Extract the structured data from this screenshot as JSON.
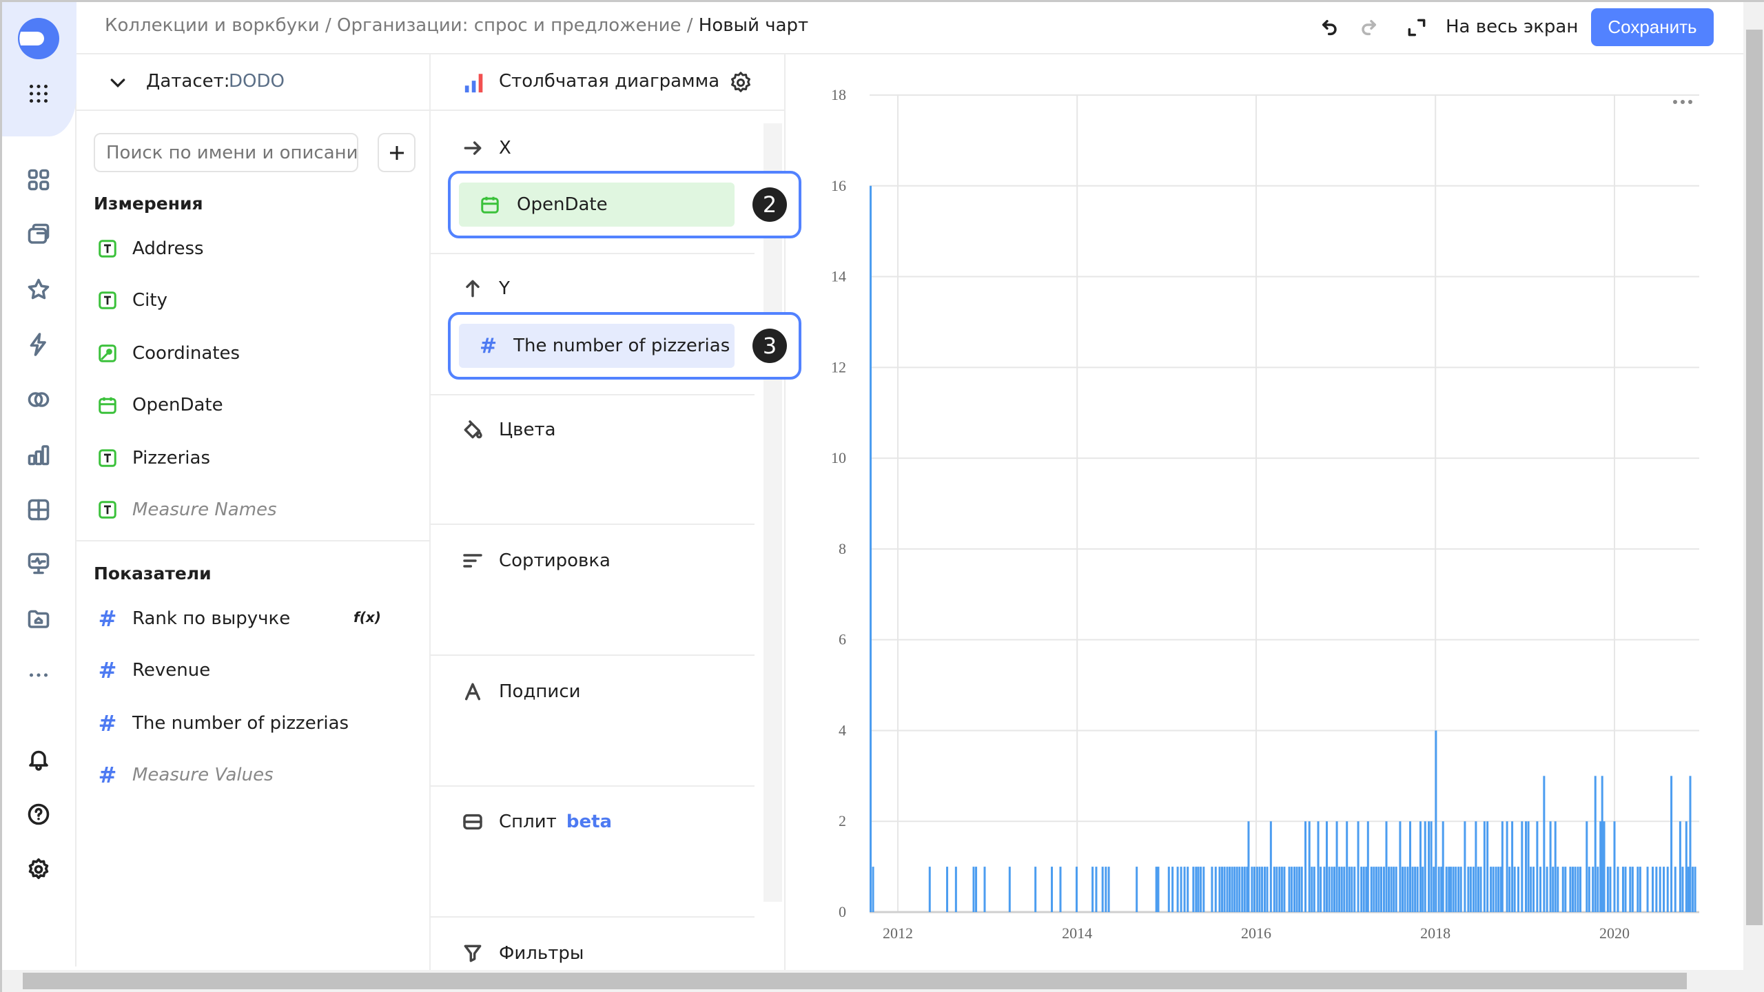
{
  "header": {
    "breadcrumb": [
      "Коллекции и воркбуки",
      "Организации: спрос и предложение",
      "Новый чарт"
    ],
    "separator": "/",
    "fullscreen_label": "На весь экран",
    "save_label": "Сохранить"
  },
  "colors": {
    "accent": "#5282ff",
    "bar": "#4c9df0",
    "dimension": "#3bc13b",
    "measure": "#4d7af2"
  },
  "dataset": {
    "label": "Датасет:",
    "name": "DODO"
  },
  "search": {
    "placeholder": "Поиск по имени и описанию"
  },
  "dimensions": {
    "title": "Измерения",
    "items": [
      {
        "label": "Address",
        "icon": "text-type-icon"
      },
      {
        "label": "City",
        "icon": "text-type-icon"
      },
      {
        "label": "Coordinates",
        "icon": "geo-type-icon"
      },
      {
        "label": "OpenDate",
        "icon": "date-type-icon"
      },
      {
        "label": "Pizzerias",
        "icon": "text-type-icon"
      },
      {
        "label": "Measure Names",
        "icon": "text-type-icon"
      }
    ]
  },
  "measures": {
    "title": "Показатели",
    "items": [
      {
        "label": "Rank по выручке",
        "badge": "f(x)"
      },
      {
        "label": "Revenue"
      },
      {
        "label": "The number of pizzerias"
      },
      {
        "label": "Measure Values"
      }
    ]
  },
  "visualization": {
    "type_label": "Столбчатая диаграмма",
    "x": {
      "label": "X",
      "field": "OpenDate",
      "step": "2"
    },
    "y": {
      "label": "Y",
      "field": "The number of pizzerias",
      "step": "3"
    },
    "colors_label": "Цвета",
    "sort_label": "Сортировка",
    "labels_label": "Подписи",
    "split_label": "Сплит",
    "split_badge": "beta",
    "filters_label": "Фильтры"
  },
  "chart_data": {
    "type": "bar",
    "xlabel": "",
    "ylabel": "",
    "ylim": [
      0,
      18
    ],
    "yticks": [
      "0",
      "2",
      "4",
      "6",
      "8",
      "10",
      "12",
      "14",
      "16",
      "18"
    ],
    "xticks": [
      "2012",
      "2014",
      "2016",
      "2018",
      "2020"
    ],
    "grid": true,
    "points": [
      [
        "2011-09-12",
        16
      ],
      [
        "2011-09-22",
        1
      ],
      [
        "2012-05-10",
        1
      ],
      [
        "2012-07-20",
        1
      ],
      [
        "2012-08-25",
        1
      ],
      [
        "2012-11-05",
        1
      ],
      [
        "2012-11-15",
        1
      ],
      [
        "2012-12-20",
        1
      ],
      [
        "2013-04-01",
        1
      ],
      [
        "2013-07-15",
        1
      ],
      [
        "2013-09-20",
        1
      ],
      [
        "2013-10-25",
        1
      ],
      [
        "2013-12-30",
        1
      ],
      [
        "2014-03-05",
        1
      ],
      [
        "2014-03-20",
        1
      ],
      [
        "2014-04-15",
        1
      ],
      [
        "2014-04-28",
        1
      ],
      [
        "2014-05-10",
        1
      ],
      [
        "2014-09-01",
        1
      ],
      [
        "2014-11-20",
        1
      ],
      [
        "2014-11-28",
        1
      ],
      [
        "2015-01-10",
        1
      ],
      [
        "2015-01-25",
        1
      ],
      [
        "2015-02-15",
        1
      ],
      [
        "2015-03-01",
        1
      ],
      [
        "2015-03-15",
        1
      ],
      [
        "2015-03-28",
        1
      ],
      [
        "2015-04-20",
        1
      ],
      [
        "2015-05-01",
        1
      ],
      [
        "2015-05-10",
        1
      ],
      [
        "2015-05-20",
        1
      ],
      [
        "2015-06-01",
        1
      ],
      [
        "2015-07-05",
        1
      ],
      [
        "2015-07-20",
        1
      ],
      [
        "2015-08-05",
        1
      ],
      [
        "2015-08-15",
        1
      ],
      [
        "2015-08-25",
        1
      ],
      [
        "2015-09-05",
        1
      ],
      [
        "2015-09-15",
        1
      ],
      [
        "2015-09-25",
        1
      ],
      [
        "2015-10-05",
        1
      ],
      [
        "2015-10-15",
        1
      ],
      [
        "2015-10-25",
        1
      ],
      [
        "2015-11-05",
        1
      ],
      [
        "2015-11-15",
        1
      ],
      [
        "2015-11-25",
        1
      ],
      [
        "2015-12-01",
        2
      ],
      [
        "2015-12-15",
        1
      ],
      [
        "2015-12-25",
        1
      ],
      [
        "2016-01-05",
        1
      ],
      [
        "2016-01-15",
        1
      ],
      [
        "2016-01-25",
        1
      ],
      [
        "2016-02-05",
        1
      ],
      [
        "2016-02-15",
        1
      ],
      [
        "2016-03-01",
        2
      ],
      [
        "2016-03-15",
        1
      ],
      [
        "2016-03-25",
        1
      ],
      [
        "2016-04-05",
        1
      ],
      [
        "2016-04-15",
        1
      ],
      [
        "2016-04-25",
        1
      ],
      [
        "2016-05-15",
        1
      ],
      [
        "2016-05-25",
        1
      ],
      [
        "2016-06-05",
        1
      ],
      [
        "2016-06-15",
        1
      ],
      [
        "2016-06-25",
        1
      ],
      [
        "2016-07-05",
        1
      ],
      [
        "2016-07-20",
        2
      ],
      [
        "2016-08-05",
        2
      ],
      [
        "2016-08-15",
        1
      ],
      [
        "2016-08-25",
        1
      ],
      [
        "2016-09-10",
        2
      ],
      [
        "2016-09-20",
        1
      ],
      [
        "2016-10-05",
        1
      ],
      [
        "2016-10-15",
        2
      ],
      [
        "2016-10-25",
        1
      ],
      [
        "2016-11-05",
        1
      ],
      [
        "2016-11-15",
        1
      ],
      [
        "2016-11-25",
        2
      ],
      [
        "2016-12-05",
        1
      ],
      [
        "2016-12-15",
        1
      ],
      [
        "2016-12-25",
        1
      ],
      [
        "2017-01-05",
        2
      ],
      [
        "2017-01-15",
        1
      ],
      [
        "2017-01-25",
        1
      ],
      [
        "2017-02-05",
        1
      ],
      [
        "2017-02-20",
        2
      ],
      [
        "2017-03-05",
        1
      ],
      [
        "2017-03-15",
        1
      ],
      [
        "2017-03-25",
        1
      ],
      [
        "2017-04-01",
        2
      ],
      [
        "2017-04-15",
        1
      ],
      [
        "2017-04-25",
        1
      ],
      [
        "2017-05-05",
        1
      ],
      [
        "2017-05-15",
        1
      ],
      [
        "2017-05-25",
        1
      ],
      [
        "2017-06-05",
        1
      ],
      [
        "2017-06-15",
        2
      ],
      [
        "2017-06-25",
        1
      ],
      [
        "2017-07-05",
        1
      ],
      [
        "2017-07-15",
        1
      ],
      [
        "2017-07-25",
        1
      ],
      [
        "2017-08-10",
        2
      ],
      [
        "2017-08-20",
        1
      ],
      [
        "2017-08-30",
        1
      ],
      [
        "2017-09-10",
        1
      ],
      [
        "2017-09-20",
        2
      ],
      [
        "2017-09-30",
        1
      ],
      [
        "2017-10-10",
        1
      ],
      [
        "2017-10-20",
        1
      ],
      [
        "2017-11-01",
        2
      ],
      [
        "2017-11-10",
        1
      ],
      [
        "2017-11-20",
        2
      ],
      [
        "2017-12-05",
        2
      ],
      [
        "2017-12-15",
        2
      ],
      [
        "2017-12-25",
        1
      ],
      [
        "2018-01-03",
        4
      ],
      [
        "2018-01-15",
        1
      ],
      [
        "2018-01-25",
        1
      ],
      [
        "2018-02-01",
        2
      ],
      [
        "2018-02-15",
        1
      ],
      [
        "2018-02-25",
        1
      ],
      [
        "2018-03-05",
        1
      ],
      [
        "2018-03-15",
        1
      ],
      [
        "2018-03-25",
        1
      ],
      [
        "2018-04-05",
        1
      ],
      [
        "2018-04-15",
        1
      ],
      [
        "2018-05-01",
        2
      ],
      [
        "2018-05-15",
        1
      ],
      [
        "2018-05-25",
        1
      ],
      [
        "2018-06-05",
        1
      ],
      [
        "2018-06-15",
        2
      ],
      [
        "2018-06-25",
        1
      ],
      [
        "2018-07-05",
        1
      ],
      [
        "2018-07-20",
        2
      ],
      [
        "2018-08-01",
        2
      ],
      [
        "2018-08-15",
        1
      ],
      [
        "2018-08-25",
        1
      ],
      [
        "2018-09-05",
        1
      ],
      [
        "2018-09-15",
        1
      ],
      [
        "2018-09-25",
        1
      ],
      [
        "2018-10-01",
        2
      ],
      [
        "2018-10-20",
        2
      ],
      [
        "2018-10-30",
        1
      ],
      [
        "2018-11-10",
        2
      ],
      [
        "2018-11-20",
        1
      ],
      [
        "2018-12-05",
        1
      ],
      [
        "2018-12-20",
        2
      ],
      [
        "2019-01-05",
        2
      ],
      [
        "2019-01-15",
        2
      ],
      [
        "2019-01-25",
        1
      ],
      [
        "2019-02-05",
        1
      ],
      [
        "2019-02-20",
        2
      ],
      [
        "2019-03-05",
        1
      ],
      [
        "2019-03-20",
        3
      ],
      [
        "2019-04-01",
        1
      ],
      [
        "2019-04-15",
        2
      ],
      [
        "2019-04-25",
        1
      ],
      [
        "2019-05-05",
        2
      ],
      [
        "2019-05-15",
        1
      ],
      [
        "2019-06-05",
        1
      ],
      [
        "2019-06-15",
        1
      ],
      [
        "2019-07-05",
        1
      ],
      [
        "2019-07-15",
        1
      ],
      [
        "2019-07-25",
        1
      ],
      [
        "2019-08-05",
        1
      ],
      [
        "2019-08-15",
        1
      ],
      [
        "2019-09-10",
        2
      ],
      [
        "2019-09-20",
        1
      ],
      [
        "2019-10-05",
        1
      ],
      [
        "2019-10-15",
        3
      ],
      [
        "2019-10-25",
        1
      ],
      [
        "2019-11-05",
        2
      ],
      [
        "2019-11-12",
        3
      ],
      [
        "2019-11-20",
        2
      ],
      [
        "2019-12-05",
        1
      ],
      [
        "2019-12-15",
        1
      ],
      [
        "2020-01-01",
        2
      ],
      [
        "2020-01-15",
        1
      ],
      [
        "2020-02-05",
        1
      ],
      [
        "2020-02-15",
        1
      ],
      [
        "2020-03-05",
        1
      ],
      [
        "2020-03-15",
        1
      ],
      [
        "2020-04-05",
        1
      ],
      [
        "2020-04-15",
        1
      ],
      [
        "2020-05-15",
        1
      ],
      [
        "2020-06-05",
        1
      ],
      [
        "2020-06-20",
        1
      ],
      [
        "2020-07-05",
        1
      ],
      [
        "2020-07-20",
        1
      ],
      [
        "2020-08-05",
        1
      ],
      [
        "2020-08-20",
        3
      ],
      [
        "2020-09-05",
        1
      ],
      [
        "2020-09-25",
        2
      ],
      [
        "2020-10-05",
        1
      ],
      [
        "2020-10-20",
        2
      ],
      [
        "2020-10-28",
        1
      ],
      [
        "2020-11-05",
        3
      ],
      [
        "2020-11-15",
        1
      ],
      [
        "2020-11-25",
        1
      ]
    ]
  }
}
